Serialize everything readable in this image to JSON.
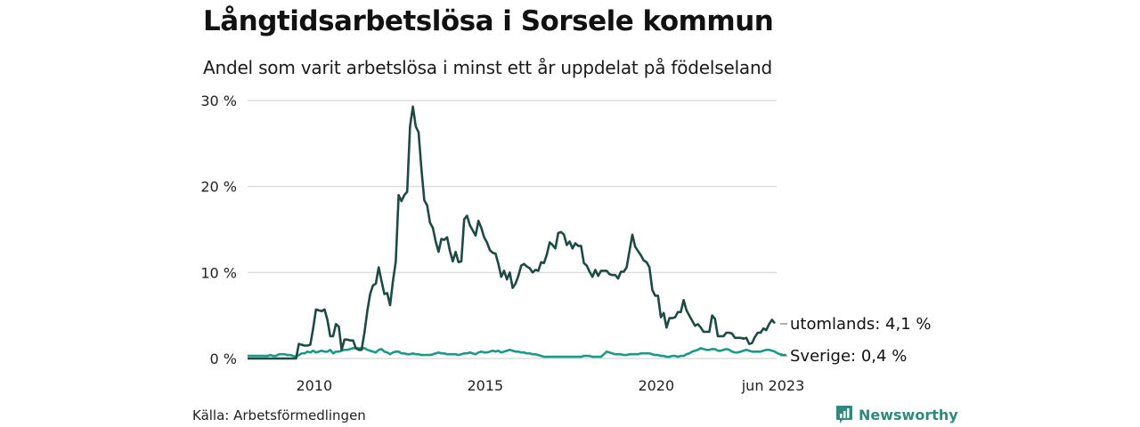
{
  "header": {
    "title": "Långtidsarbetslösa i Sorsele kommun",
    "subtitle": "Andel som varit arbetslösa i minst ett år uppdelat på födelseland"
  },
  "footer": {
    "source": "Källa: Arbetsförmedlingen",
    "brand": "Newsworthy",
    "brand_icon": "bar-chart-speech-icon",
    "brand_color": "#2d8a7c"
  },
  "chart_data": {
    "type": "line",
    "title": "Långtidsarbetslösa i Sorsele kommun",
    "subtitle": "Andel som varit arbetslösa i minst ett år uppdelat på födelseland",
    "xlabel": "",
    "ylabel": "",
    "x_start": "2008-01",
    "x_end": "2023-06",
    "frequency": "monthly",
    "ylim": [
      0,
      30
    ],
    "grid": true,
    "y_ticks": [
      {
        "value": 0,
        "label": "0 %"
      },
      {
        "value": 10,
        "label": "10 %"
      },
      {
        "value": 20,
        "label": "20 %"
      },
      {
        "value": 30,
        "label": "30 %"
      }
    ],
    "x_ticks": [
      {
        "month_index": 24,
        "label": "2010"
      },
      {
        "month_index": 84,
        "label": "2015"
      },
      {
        "month_index": 144,
        "label": "2020"
      },
      {
        "month_index": 185,
        "label": "jun 2023"
      }
    ],
    "series": [
      {
        "name": "utomlands",
        "color": "#1f4a44",
        "end_label": "utomlands: 4,1 %",
        "values": [
          0,
          0,
          0,
          0,
          0,
          0,
          0,
          0,
          0,
          0,
          0,
          0,
          0,
          0,
          0,
          0,
          0,
          0,
          1.7,
          1.6,
          1.5,
          1.5,
          1.6,
          3.5,
          5.7,
          5.6,
          5.5,
          5.7,
          4.5,
          2.6,
          2.6,
          4.0,
          3.7,
          1.0,
          2.2,
          2.2,
          2.1,
          2.1,
          1.2,
          1.0,
          1.0,
          3.0,
          5.5,
          7.5,
          8.5,
          8.7,
          10.6,
          9.0,
          7.5,
          7.6,
          6.2,
          9.0,
          11.3,
          19.0,
          18.3,
          19.0,
          19.4,
          27.0,
          29.3,
          27.0,
          26.3,
          22.0,
          18.4,
          17.8,
          15.8,
          15.2,
          13.6,
          12.4,
          13.9,
          13.8,
          14.1,
          12.5,
          11.3,
          12.4,
          11.2,
          11.3,
          16.2,
          16.6,
          15.5,
          14.9,
          14.3,
          16.0,
          15.2,
          14.1,
          13.5,
          12.6,
          12.3,
          12.2,
          11.0,
          9.5,
          10.2,
          9.2,
          10.0,
          8.2,
          8.7,
          9.6,
          10.8,
          11.0,
          10.7,
          10.5,
          10.0,
          10.3,
          10.2,
          11.2,
          11.1,
          12.1,
          13.5,
          13.2,
          12.8,
          14.6,
          14.7,
          14.4,
          13.2,
          13.6,
          12.8,
          13.4,
          13.1,
          13.1,
          11.1,
          10.8,
          10.1,
          9.5,
          10.3,
          9.6,
          10.2,
          10.2,
          10.2,
          9.8,
          9.7,
          9.7,
          9.3,
          10.1,
          10.1,
          10.6,
          12.5,
          14.4,
          13.0,
          12.5,
          12.0,
          11.4,
          11.2,
          10.6,
          8.0,
          7.3,
          7.3,
          4.8,
          5.3,
          3.6,
          4.7,
          4.7,
          4.8,
          5.4,
          5.4,
          6.8,
          5.6,
          5.0,
          4.4,
          3.8,
          4.0,
          3.6,
          3.1,
          3.1,
          3.1,
          5.0,
          4.6,
          2.6,
          2.6,
          2.6,
          3.0,
          3.0,
          2.9,
          2.4,
          2.4,
          2.4,
          2.3,
          2.4,
          1.7,
          1.8,
          2.5,
          3.0,
          3.0,
          3.5,
          3.3,
          4.0,
          4.5,
          4.1
        ]
      },
      {
        "name": "Sverige",
        "color": "#1a9a86",
        "end_label": "Sverige: 0,4 %",
        "values": [
          0.3,
          0.3,
          0.3,
          0.3,
          0.3,
          0.3,
          0.3,
          0.3,
          0.4,
          0.3,
          0.3,
          0.5,
          0.5,
          0.5,
          0.4,
          0.4,
          0.3,
          0.2,
          0.4,
          0.6,
          0.6,
          0.8,
          0.7,
          0.9,
          0.7,
          0.8,
          0.9,
          0.8,
          0.8,
          1.0,
          0.6,
          0.8,
          0.8,
          0.9,
          1.0,
          1.0,
          1.1,
          1.2,
          1.2,
          1.2,
          1.2,
          1.2,
          1.0,
          0.9,
          0.8,
          0.7,
          1.0,
          1.1,
          0.8,
          0.7,
          0.5,
          0.7,
          0.8,
          0.8,
          0.6,
          0.6,
          0.5,
          0.5,
          0.6,
          0.5,
          0.5,
          0.4,
          0.4,
          0.4,
          0.4,
          0.5,
          0.6,
          0.7,
          0.6,
          0.6,
          0.5,
          0.5,
          0.5,
          0.5,
          0.4,
          0.5,
          0.6,
          0.6,
          0.7,
          0.6,
          0.5,
          0.7,
          0.8,
          0.7,
          0.7,
          0.8,
          0.9,
          0.8,
          0.9,
          0.7,
          0.8,
          0.9,
          1.0,
          0.9,
          0.8,
          0.8,
          0.7,
          0.7,
          0.6,
          0.6,
          0.5,
          0.5,
          0.4,
          0.3,
          0.2,
          0.2,
          0.2,
          0.2,
          0.2,
          0.2,
          0.2,
          0.2,
          0.2,
          0.2,
          0.2,
          0.2,
          0.2,
          0.2,
          0.3,
          0.3,
          0.3,
          0.2,
          0.2,
          0.2,
          0.2,
          0.5,
          0.8,
          0.7,
          0.6,
          0.5,
          0.5,
          0.5,
          0.4,
          0.4,
          0.5,
          0.5,
          0.5,
          0.5,
          0.6,
          0.6,
          0.6,
          0.6,
          0.5,
          0.4,
          0.4,
          0.3,
          0.3,
          0.2,
          0.2,
          0.3,
          0.3,
          0.2,
          0.3,
          0.3,
          0.5,
          0.6,
          0.8,
          0.9,
          1.0,
          1.2,
          1.1,
          1.0,
          1.0,
          1.1,
          1.1,
          0.9,
          0.9,
          1.0,
          1.1,
          1.0,
          0.8,
          0.7,
          0.7,
          0.8,
          0.9,
          1.0,
          0.9,
          0.8,
          0.8,
          0.8,
          0.8,
          0.9,
          1.0,
          1.0,
          0.9,
          0.8,
          0.6,
          0.5,
          0.4,
          0.4
        ]
      }
    ]
  }
}
